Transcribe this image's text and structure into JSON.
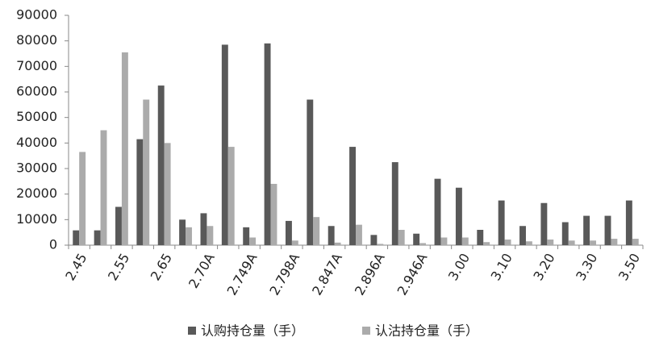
{
  "chart_data": {
    "type": "bar",
    "categories": [
      "2.45",
      null,
      "2.55",
      null,
      "2.65",
      null,
      "2.70A",
      null,
      "2.749A",
      null,
      "2.798A",
      null,
      "2.847A",
      null,
      "2.896A",
      null,
      "2.946A",
      null,
      "3.00",
      null,
      "3.10",
      null,
      "3.20",
      null,
      "3.30",
      null,
      "3.50"
    ],
    "series": [
      {
        "name": "认购持仓量（手）",
        "color": "#595959",
        "values": [
          5800,
          5800,
          15000,
          41500,
          62500,
          10000,
          12500,
          78500,
          7000,
          79000,
          9500,
          57000,
          7500,
          38500,
          4000,
          32500,
          4500,
          26000,
          22500,
          6000,
          17500,
          7500,
          16500,
          9000,
          11500,
          11500,
          17500
        ]
      },
      {
        "name": "认沽持仓量（手）",
        "color": "#ababab",
        "values": [
          36500,
          45000,
          75500,
          57000,
          40000,
          7000,
          7500,
          38500,
          3000,
          24000,
          1800,
          11000,
          1000,
          8000,
          500,
          6000,
          800,
          3000,
          3000,
          1200,
          2200,
          1500,
          2200,
          1800,
          1800,
          2500,
          2500
        ]
      }
    ],
    "ylim": [
      0,
      90000
    ],
    "yticks": [
      0,
      10000,
      20000,
      30000,
      40000,
      50000,
      60000,
      70000,
      80000,
      90000
    ],
    "legend": "bottom"
  }
}
